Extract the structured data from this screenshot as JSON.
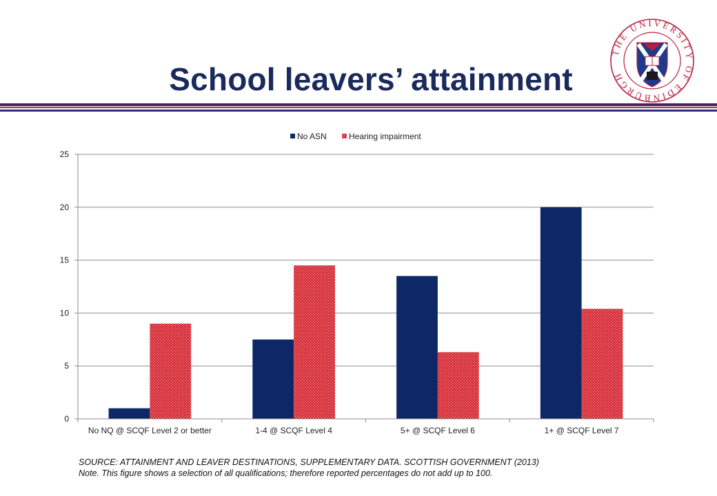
{
  "slide": {
    "title": "School leavers’ attainment",
    "logo_text": "THE UNIVERSITY OF EDINBURGH"
  },
  "colors": {
    "title": "#1a2a5c",
    "rule_top": "#4a2458",
    "rule_mid": "#c0306a",
    "rule_bottom": "#28306e",
    "no_asn": "#0e2766",
    "hearing": "#d6303a"
  },
  "chart_data": {
    "type": "bar",
    "categories": [
      "No NQ @  SCQF Level 2 or better",
      "1-4 @ SCQF Level 4",
      "5+ @ SCQF Level 6",
      "1+ @ SCQF Level 7"
    ],
    "series": [
      {
        "name": "No ASN",
        "values": [
          1.0,
          7.5,
          13.5,
          20.0
        ],
        "color": "#0e2766",
        "pattern": "solid"
      },
      {
        "name": "Hearing impairment",
        "values": [
          9.0,
          14.5,
          6.3,
          10.4
        ],
        "color": "#d6303a",
        "pattern": "dotted"
      }
    ],
    "ylim": [
      0,
      25
    ],
    "yticks": [
      "0",
      "5",
      "10",
      "15",
      "20",
      "25"
    ],
    "grid": true,
    "legend": "top-center",
    "title": "",
    "xlabel": "",
    "ylabel": ""
  },
  "footnote": {
    "source": "SOURCE: ATTAINMENT AND LEAVER DESTINATIONS, SUPPLEMENTARY DATA.  SCOTTISH GOVERNMENT (2013)",
    "note": "Note. This figure shows a selection of all qualifications; therefore reported percentages do not add up to 100."
  }
}
